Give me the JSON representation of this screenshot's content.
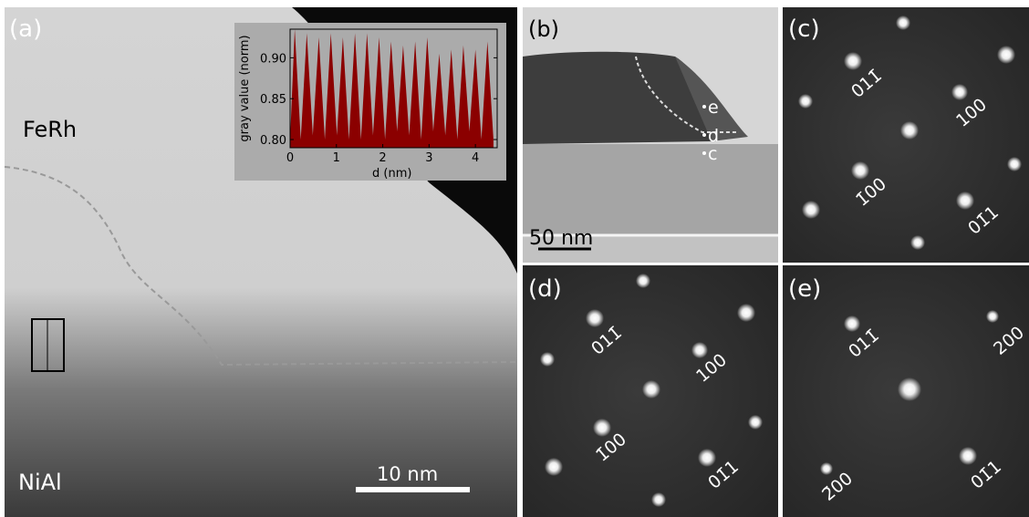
{
  "panels": {
    "a": {
      "label": "(a)",
      "top_label": "FeRh",
      "bottom_label": "NiAl",
      "scale_bar": "10 nm"
    },
    "b": {
      "label": "(b)",
      "points": [
        "e",
        "d",
        "c"
      ],
      "scale_bar": "50 nm"
    },
    "c": {
      "label": "(c)",
      "spots": [
        "011̄",
        "100",
        "1̄00",
        "01̄1"
      ]
    },
    "d": {
      "label": "(d)",
      "spots": [
        "011̄",
        "100",
        "1̄00",
        "01̄1"
      ]
    },
    "e": {
      "label": "(e)",
      "spots": [
        "011̄",
        "200",
        "2̄00",
        "01̄1"
      ]
    }
  },
  "chart_data": {
    "type": "area",
    "xlabel": "d (nm)",
    "ylabel": "gray value (norm)",
    "color": "#8b0000",
    "x": [
      0,
      0.1,
      0.23,
      0.36,
      0.49,
      0.62,
      0.75,
      0.88,
      1.01,
      1.14,
      1.27,
      1.4,
      1.53,
      1.66,
      1.79,
      1.92,
      2.05,
      2.18,
      2.31,
      2.44,
      2.57,
      2.7,
      2.83,
      2.96,
      3.09,
      3.22,
      3.35,
      3.48,
      3.61,
      3.74,
      3.87,
      4.0,
      4.13,
      4.26,
      4.39
    ],
    "values": [
      0.8,
      0.935,
      0.8,
      0.93,
      0.805,
      0.925,
      0.8,
      0.93,
      0.805,
      0.925,
      0.8,
      0.93,
      0.8,
      0.93,
      0.805,
      0.925,
      0.8,
      0.92,
      0.81,
      0.915,
      0.805,
      0.92,
      0.8,
      0.925,
      0.81,
      0.905,
      0.805,
      0.91,
      0.8,
      0.915,
      0.81,
      0.91,
      0.8,
      0.92,
      0.8
    ],
    "xlim": [
      0,
      4.47
    ],
    "ylim": [
      0.79,
      0.935
    ],
    "xticks": [
      0,
      1,
      2,
      3,
      4
    ],
    "yticks": [
      {
        "value": 0.8,
        "label": "0.80"
      },
      {
        "value": 0.85,
        "label": "0.85"
      },
      {
        "value": 0.9,
        "label": "0.90"
      }
    ]
  }
}
